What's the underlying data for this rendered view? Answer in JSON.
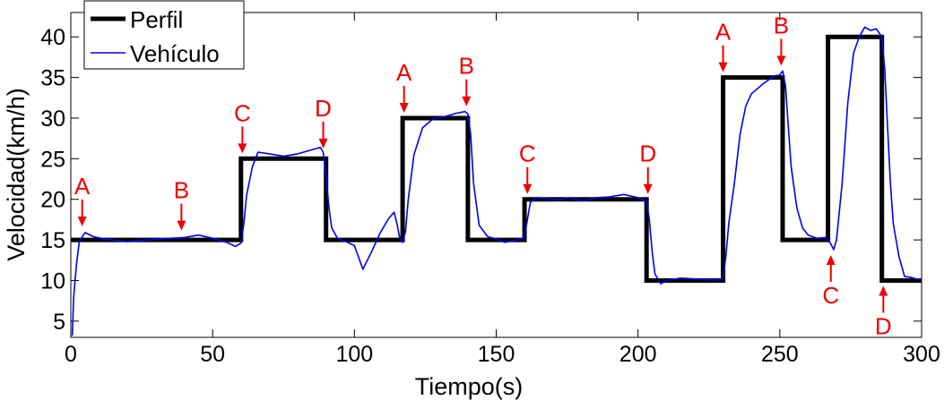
{
  "chart_data": {
    "type": "line",
    "title": "",
    "xlabel": "Tiempo(s)",
    "ylabel": "Velocidad(km/h)",
    "xlim": [
      0,
      300
    ],
    "ylim": [
      3,
      43
    ],
    "xticks": [
      0,
      50,
      100,
      150,
      200,
      250,
      300
    ],
    "yticks": [
      5,
      10,
      15,
      20,
      25,
      30,
      35,
      40
    ],
    "grid": false,
    "legend_position": "top-left",
    "series": [
      {
        "name": "Perfil",
        "color": "#000000",
        "style": "step",
        "x": [
          0,
          60,
          60,
          90,
          90,
          117,
          117,
          140,
          140,
          160,
          160,
          203,
          203,
          230,
          230,
          251,
          251,
          267,
          267,
          286,
          286,
          300
        ],
        "y": [
          15,
          15,
          25,
          25,
          15,
          15,
          30,
          30,
          15,
          15,
          20,
          20,
          10,
          10,
          35,
          35,
          15,
          15,
          40,
          40,
          10,
          10
        ]
      },
      {
        "name": "Vehículo",
        "color": "#0000ee",
        "style": "line",
        "x": [
          0.5,
          1,
          2,
          3,
          5,
          8,
          12,
          20,
          30,
          40,
          45,
          50,
          55,
          58,
          60,
          61,
          62,
          64,
          66,
          70,
          75,
          80,
          85,
          88,
          89,
          90,
          91,
          92,
          94,
          97,
          100,
          103,
          106,
          109,
          112,
          114,
          115,
          116,
          117,
          118,
          119,
          121,
          124,
          128,
          132,
          136,
          139,
          140,
          141,
          142,
          144,
          147,
          150,
          153,
          156,
          159,
          160,
          161,
          162,
          164,
          168,
          172,
          176,
          180,
          185,
          190,
          195,
          200,
          203,
          204,
          205,
          206,
          208,
          210,
          215,
          220,
          225,
          229,
          230,
          231,
          232,
          234,
          236,
          238,
          240,
          244,
          248,
          250,
          251,
          252,
          253,
          254,
          256,
          258,
          260,
          263,
          266,
          267,
          268,
          269,
          270,
          272,
          274,
          276,
          278,
          280,
          282,
          284,
          286,
          287,
          288,
          289,
          290,
          292,
          294,
          296,
          298,
          300
        ],
        "y": [
          3.2,
          8,
          12,
          14.8,
          15.9,
          15.4,
          15.1,
          14.8,
          15.1,
          15.3,
          15.6,
          15.2,
          14.7,
          14.2,
          14.6,
          17,
          20.5,
          24,
          25.8,
          25.6,
          25.3,
          25.6,
          26.1,
          26.4,
          25.8,
          23,
          19,
          16.5,
          15.2,
          14.8,
          14.3,
          11.4,
          13.5,
          15.8,
          17.6,
          18.4,
          17,
          15.2,
          14.7,
          16,
          20,
          25.5,
          28.8,
          30,
          30.2,
          30.6,
          30.8,
          30.5,
          28,
          22,
          16.8,
          15.4,
          15.1,
          14.7,
          14.9,
          15.1,
          15.4,
          17.5,
          19.6,
          20.2,
          20.1,
          19.9,
          20.2,
          19.8,
          20.2,
          20.3,
          20.6,
          20.2,
          19.7,
          17.5,
          13.5,
          10.8,
          9.6,
          10,
          10.3,
          10.2,
          10.1,
          10.1,
          10.3,
          13,
          17,
          22,
          28,
          31.5,
          33,
          34.2,
          35.2,
          35.3,
          35.8,
          34,
          29,
          24,
          19,
          16.5,
          15.6,
          15.2,
          15.3,
          15,
          14.5,
          13.8,
          15,
          22,
          32,
          38,
          40,
          41.2,
          40.8,
          41,
          40,
          36,
          29,
          22,
          17,
          13,
          10.5,
          10.4,
          10.2,
          10.1
        ]
      }
    ],
    "annotations": [
      {
        "label": "A",
        "x": 4,
        "y": 16,
        "side": "above"
      },
      {
        "label": "B",
        "x": 39,
        "y": 15.5,
        "side": "above"
      },
      {
        "label": "C",
        "x": 60.5,
        "y": 25,
        "side": "above"
      },
      {
        "label": "D",
        "x": 89,
        "y": 25.6,
        "side": "above"
      },
      {
        "label": "A",
        "x": 117.5,
        "y": 30,
        "side": "above"
      },
      {
        "label": "B",
        "x": 139.5,
        "y": 30.8,
        "side": "above"
      },
      {
        "label": "C",
        "x": 161,
        "y": 20,
        "side": "above"
      },
      {
        "label": "D",
        "x": 203.5,
        "y": 20,
        "side": "above"
      },
      {
        "label": "A",
        "x": 230,
        "y": 35,
        "side": "above"
      },
      {
        "label": "B",
        "x": 250.5,
        "y": 35.8,
        "side": "above"
      },
      {
        "label": "C",
        "x": 268,
        "y": 13.8,
        "side": "below"
      },
      {
        "label": "D",
        "x": 286.5,
        "y": 10,
        "side": "below"
      }
    ],
    "annotation_color": "#ee0000"
  }
}
